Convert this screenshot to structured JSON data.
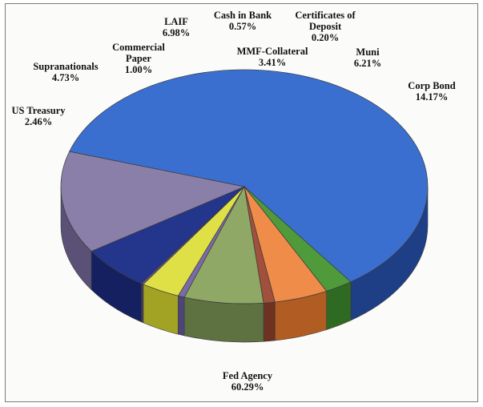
{
  "chart_data": {
    "type": "pie",
    "title": "",
    "slices": [
      {
        "label": [
          "Fed Agency"
        ],
        "value": 60.29,
        "value_label": "60.29%",
        "color": "#3a6fcf",
        "side": "#1e3f86"
      },
      {
        "label": [
          "US Treasury"
        ],
        "value": 2.46,
        "value_label": "2.46%",
        "color": "#4f9a3a",
        "side": "#2f6a22"
      },
      {
        "label": [
          "Supranationals"
        ],
        "value": 4.73,
        "value_label": "4.73%",
        "color": "#ef8c49",
        "side": "#b15c22"
      },
      {
        "label": [
          "Commercial",
          "Paper"
        ],
        "value": 1.0,
        "value_label": "1.00%",
        "color": "#a0503c",
        "side": "#6e3122"
      },
      {
        "label": [
          "LAIF"
        ],
        "value": 6.98,
        "value_label": "6.98%",
        "color": "#8fa866",
        "side": "#5d7240"
      },
      {
        "label": [
          "Cash in Bank"
        ],
        "value": 0.57,
        "value_label": "0.57%",
        "color": "#7a6ba8",
        "side": "#4f4478"
      },
      {
        "label": [
          "MMF-Collateral"
        ],
        "value": 3.41,
        "value_label": "3.41%",
        "color": "#dfe046",
        "side": "#a2a224"
      },
      {
        "label": [
          "Certificates of",
          "Deposit"
        ],
        "value": 0.2,
        "value_label": "0.20%",
        "color": "#6b5a8e",
        "side": "#453a60"
      },
      {
        "label": [
          "Muni"
        ],
        "value": 6.21,
        "value_label": "6.21%",
        "color": "#24358c",
        "side": "#142060"
      },
      {
        "label": [
          "Corp Bond"
        ],
        "value": 14.17,
        "value_label": "14.17%",
        "color": "#8a7fa9",
        "side": "#5b5177"
      }
    ]
  }
}
